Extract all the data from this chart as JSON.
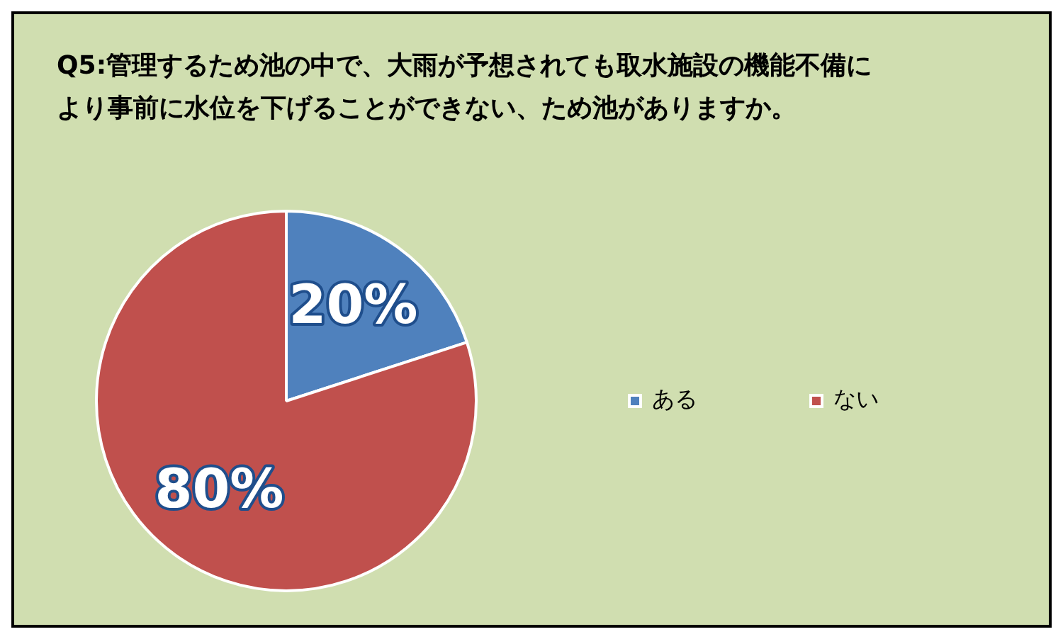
{
  "chart_data": {
    "type": "pie",
    "title": "Q5:管理するため池の中で、大雨が予想されても取水施設の機能不備により事前に水位を下げることができない、ため池がありますか。",
    "categories": [
      "ある",
      "ない"
    ],
    "values": [
      20,
      80
    ],
    "colors": [
      "#4f81bd",
      "#c0504d"
    ],
    "value_labels": [
      "20%",
      "80%"
    ],
    "legend": "right"
  }
}
